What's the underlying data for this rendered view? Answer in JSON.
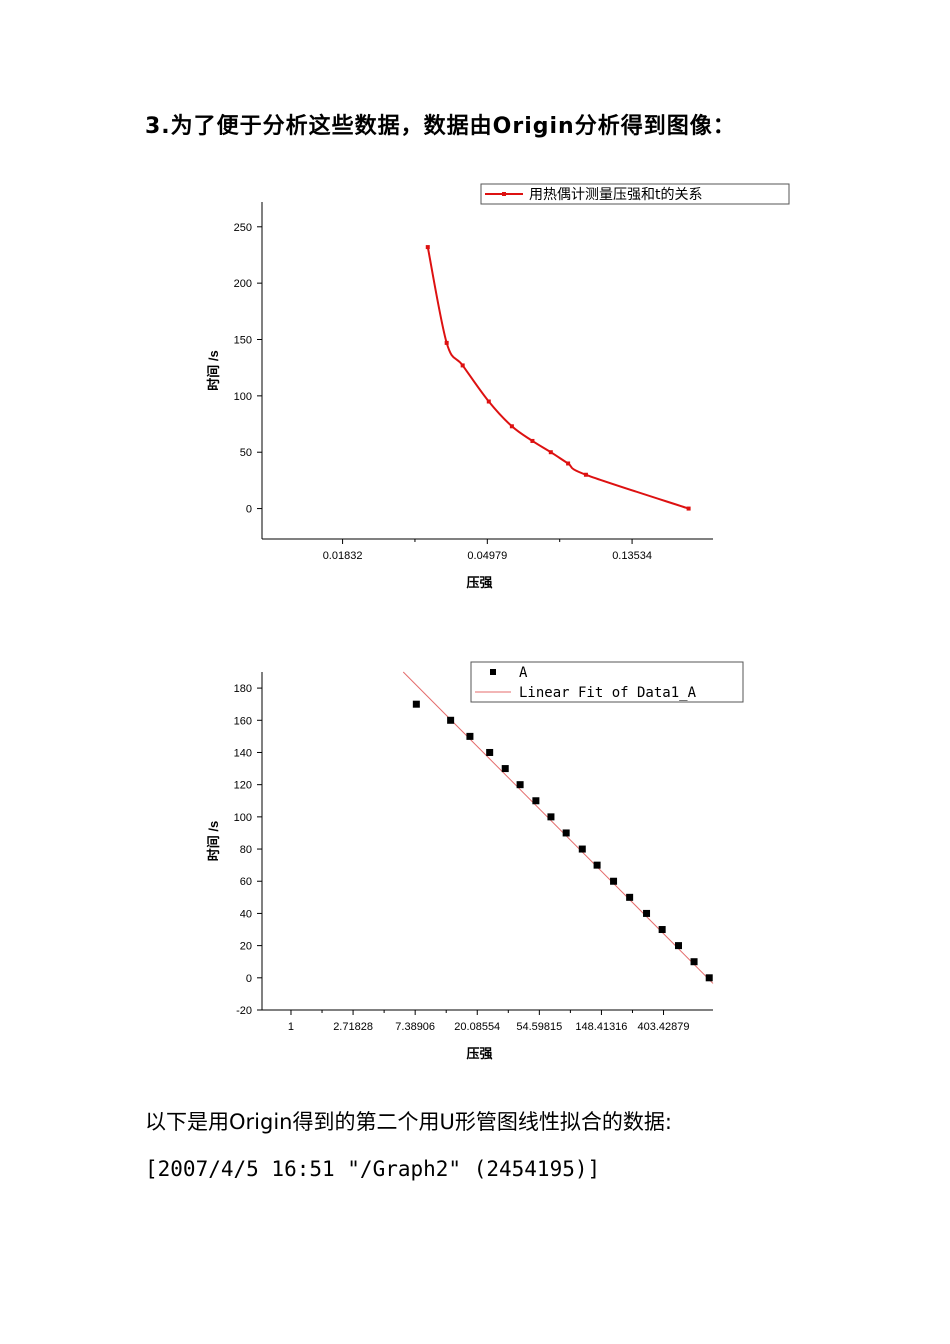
{
  "heading": "3.为了便于分析这些数据，数据由Origin分析得到图像：",
  "chart_data": [
    {
      "type": "line",
      "legend": {
        "placement": "top-right",
        "entries": [
          "用热偶计测量压强和t的关系"
        ]
      },
      "xlabel": "压强",
      "ylabel": "时间 /s",
      "x_scale": "log",
      "x_tick_labels": [
        "0.01832",
        "0.04979",
        "0.13534"
      ],
      "x_tick_values": [
        0.01832,
        0.04979,
        0.13534
      ],
      "xlim": [
        0.0105,
        0.2367
      ],
      "ylim": [
        -27,
        272
      ],
      "y_ticks": [
        0,
        50,
        100,
        150,
        200,
        250
      ],
      "grid": false,
      "color": "#dd1111",
      "series": [
        {
          "name": "用热偶计测量压强和t的关系",
          "x": [
            0.033,
            0.0376,
            0.042,
            0.0503,
            0.059,
            0.068,
            0.0772,
            0.087,
            0.0984,
            0.2
          ],
          "y": [
            232,
            147,
            127,
            95,
            73,
            60,
            50,
            40,
            30,
            0
          ]
        }
      ]
    },
    {
      "type": "scatter",
      "legend": {
        "placement": "top-right",
        "entries": [
          "A",
          "Linear Fit of Data1_A"
        ]
      },
      "xlabel": "压强",
      "ylabel": "时间 /s",
      "x_scale": "log",
      "x_tick_labels": [
        "1",
        "2.71828",
        "7.38906",
        "20.08554",
        "54.59815",
        "148.41316",
        "403.42879"
      ],
      "x_tick_values": [
        1,
        2.71828,
        7.38906,
        20.08554,
        54.59815,
        148.41316,
        403.42879
      ],
      "xlim": [
        0.627,
        895
      ],
      "ylim": [
        -20,
        190
      ],
      "y_ticks": [
        -20,
        0,
        20,
        40,
        60,
        80,
        100,
        120,
        140,
        160,
        180
      ],
      "grid": false,
      "series": [
        {
          "name": "A",
          "x": [
            7.53,
            13.08,
            17.85,
            24.53,
            31.52,
            40.05,
            51.64,
            65.82,
            84.1,
            109.02,
            138.38,
            180.4,
            233.75,
            306.85,
            394.61,
            513.52,
            659.69,
            842.21
          ],
          "y": [
            170,
            160,
            150,
            140,
            130,
            120,
            110,
            100,
            90,
            80,
            70,
            60,
            50,
            40,
            30,
            20,
            10,
            0
          ]
        },
        {
          "name": "Linear Fit of Data1_A",
          "x": [
            6.1,
            895
          ],
          "y": [
            190,
            -3.5
          ]
        }
      ]
    }
  ],
  "paragraph": {
    "text": "以下是用Origin得到的第二个用U形管图线性拟合的数据:",
    "meta": "[2007/4/5 16:51 \"/Graph2\" (2454195)]"
  }
}
